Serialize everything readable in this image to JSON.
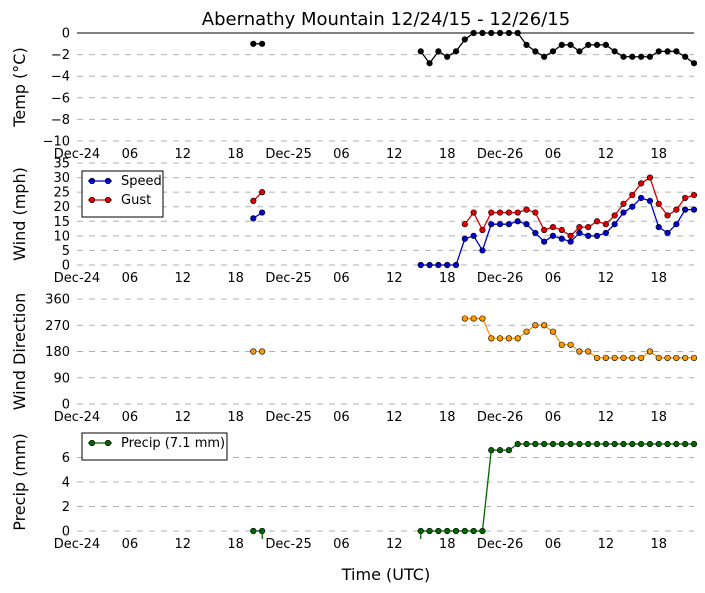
{
  "title": "Abernathy Mountain 12/24/15 - 12/26/15",
  "xlabel": "Time (UTC)",
  "x_ticks": [
    "Dec-24",
    "06",
    "12",
    "18",
    "Dec-25",
    "06",
    "12",
    "18",
    "Dec-26",
    "06",
    "12",
    "18"
  ],
  "x_tick_hours": [
    0,
    6,
    12,
    18,
    24,
    30,
    36,
    42,
    48,
    54,
    60,
    66
  ],
  "x_range_hours": [
    0,
    70
  ],
  "colors": {
    "temp": "#000000",
    "speed": "#0000cc",
    "gust": "#dd0000",
    "direction": "#ff9900",
    "precip": "#006600"
  },
  "chart_data": [
    {
      "type": "line",
      "id": "temp",
      "ylabel": "Temp (°C)",
      "ylim": [
        -10,
        0
      ],
      "yticks": [
        0,
        -2,
        -4,
        -6,
        -8,
        -10
      ],
      "ytick_labels": [
        "0",
        "−2",
        "−4",
        "−6",
        "−8",
        "−10"
      ],
      "series": [
        {
          "name": "Temp",
          "color": "#000000",
          "x": [
            20,
            21,
            39,
            40,
            41,
            42,
            43,
            44,
            45,
            46,
            47,
            48,
            49,
            50,
            51,
            52,
            53,
            54,
            55,
            56,
            57,
            58,
            59,
            60,
            61,
            62,
            63,
            64,
            65,
            66,
            67,
            68,
            69,
            70
          ],
          "values": [
            -1,
            -1,
            -1.7,
            -2.8,
            -1.7,
            -2.2,
            -1.7,
            -0.6,
            0,
            0,
            0,
            0,
            0,
            0,
            -1.1,
            -1.7,
            -2.2,
            -1.7,
            -1.1,
            -1.1,
            -1.7,
            -1.1,
            -1.1,
            -1.1,
            -1.7,
            -2.2,
            -2.2,
            -2.2,
            -2.2,
            -1.7,
            -1.7,
            -1.7,
            -2.2,
            -2.8
          ],
          "segments": [
            [
              20,
              21
            ],
            [
              39,
              70
            ]
          ]
        }
      ]
    },
    {
      "type": "line",
      "id": "wind",
      "ylabel": "Wind (mph)",
      "ylim": [
        0,
        35
      ],
      "yticks": [
        0,
        5,
        10,
        15,
        20,
        25,
        30,
        35
      ],
      "ytick_labels": [
        "0",
        "5",
        "10",
        "15",
        "20",
        "25",
        "30",
        "35"
      ],
      "legend": "top-left",
      "series": [
        {
          "name": "Speed",
          "color": "#0000cc",
          "x": [
            20,
            21,
            39,
            40,
            41,
            42,
            43,
            44,
            45,
            46,
            47,
            48,
            49,
            50,
            51,
            52,
            53,
            54,
            55,
            56,
            57,
            58,
            59,
            60,
            61,
            62,
            63,
            64,
            65,
            66,
            67,
            68,
            69,
            70
          ],
          "values": [
            16,
            18,
            0,
            0,
            0,
            0,
            0,
            9,
            10,
            5,
            14,
            14,
            14,
            15,
            14,
            11,
            8,
            10,
            9,
            8,
            11,
            10,
            10,
            11,
            14,
            18,
            20,
            23,
            22,
            13,
            11,
            14,
            19,
            19
          ],
          "segments": [
            [
              20,
              21
            ],
            [
              39,
              70
            ]
          ]
        },
        {
          "name": "Gust",
          "color": "#dd0000",
          "x": [
            20,
            21,
            44,
            45,
            46,
            47,
            48,
            49,
            50,
            51,
            52,
            53,
            54,
            55,
            56,
            57,
            58,
            59,
            60,
            61,
            62,
            63,
            64,
            65,
            66,
            67,
            68,
            69,
            70
          ],
          "values": [
            22,
            25,
            14,
            18,
            12,
            18,
            18,
            18,
            18,
            19,
            18,
            12,
            13,
            12,
            10,
            13,
            13,
            15,
            14,
            17,
            21,
            24,
            28,
            30,
            21,
            17,
            19,
            23,
            24
          ],
          "segments": [
            [
              20,
              21
            ],
            [
              44,
              70
            ]
          ]
        }
      ]
    },
    {
      "type": "scatter",
      "id": "direction",
      "ylabel": "Wind Direction",
      "ylim": [
        0,
        360
      ],
      "yticks": [
        0,
        90,
        180,
        270,
        360
      ],
      "ytick_labels": [
        "0",
        "90",
        "180",
        "270",
        "360"
      ],
      "series": [
        {
          "name": "Direction",
          "color": "#ff9900",
          "x": [
            20,
            21,
            44,
            45,
            46,
            47,
            48,
            49,
            50,
            51,
            52,
            53,
            54,
            55,
            56,
            57,
            58,
            59,
            60,
            61,
            62,
            63,
            64,
            65,
            66,
            67,
            68,
            69,
            70
          ],
          "values": [
            180,
            180,
            293,
            293,
            293,
            225,
            225,
            225,
            225,
            248,
            270,
            270,
            248,
            203,
            203,
            180,
            180,
            158,
            158,
            158,
            158,
            158,
            158,
            180,
            158,
            158,
            158,
            158,
            158
          ],
          "segments": [
            [
              20,
              21
            ],
            [
              44,
              70
            ]
          ]
        }
      ]
    },
    {
      "type": "line",
      "id": "precip",
      "ylabel": "Precip (mm)",
      "ylim": [
        0,
        8
      ],
      "yticks": [
        0,
        2,
        4,
        6
      ],
      "ytick_labels": [
        "0",
        "2",
        "4",
        "6"
      ],
      "legend": "top-left",
      "series": [
        {
          "name": "Precip (7.1 mm)",
          "color": "#006600",
          "x": [
            20,
            21,
            39,
            40,
            41,
            42,
            43,
            44,
            45,
            46,
            47,
            48,
            49,
            50,
            51,
            52,
            53,
            54,
            55,
            56,
            57,
            58,
            59,
            60,
            61,
            62,
            63,
            64,
            65,
            66,
            67,
            68,
            69,
            70
          ],
          "values": [
            0,
            0,
            0,
            0,
            0,
            0,
            0,
            0,
            0,
            0,
            6.6,
            6.6,
            6.6,
            7.1,
            7.1,
            7.1,
            7.1,
            7.1,
            7.1,
            7.1,
            7.1,
            7.1,
            7.1,
            7.1,
            7.1,
            7.1,
            7.1,
            7.1,
            7.1,
            7.1,
            7.1,
            7.1,
            7.1,
            7.1
          ],
          "segments": [
            [
              20,
              21
            ],
            [
              39,
              70
            ]
          ]
        }
      ]
    }
  ]
}
